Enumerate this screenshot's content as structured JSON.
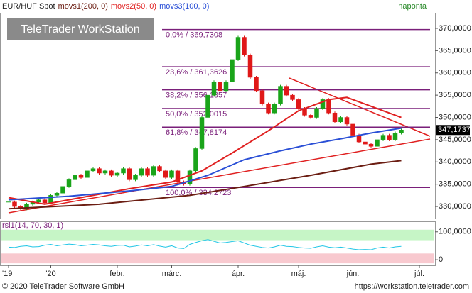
{
  "chart_data": {
    "type": "candlestick",
    "title": "EUR/HUF Spot",
    "logo": "TeleTrader WorkStation",
    "period": "naponta",
    "footer_left": "© 2020 TeleTrader Software GmbH",
    "footer_right": "https://workstation.teletrader.com",
    "close": [
      331,
      330,
      329.5,
      330.5,
      331,
      331.5,
      330.8,
      332.5,
      333,
      334.5,
      336,
      337,
      336.5,
      338,
      338.5,
      337.5,
      338,
      337,
      337.5,
      338.5,
      336,
      337,
      338.5,
      337,
      339,
      338,
      336.5,
      338,
      335.5,
      335,
      338,
      343,
      350,
      355,
      358,
      356,
      358,
      363,
      368,
      364,
      359,
      356,
      353,
      351,
      353,
      357,
      355,
      354,
      352,
      350.5,
      350,
      352,
      354,
      351,
      349,
      350,
      348.5,
      346,
      344.5,
      344,
      343.5,
      345,
      346,
      345,
      346.5,
      347.1737
    ],
    "up_color": "#1aa41a",
    "down_color": "#e01818",
    "last_label": {
      "value": 347.1737,
      "label": "347,1737"
    },
    "series": [
      {
        "name": "movs1(200, 0)",
        "color": "#6b1d12",
        "x": [
          0,
          15,
          30,
          39,
          50,
          60,
          65
        ],
        "values": [
          329.5,
          330.5,
          332.5,
          334.5,
          337,
          339.5,
          340.3
        ]
      },
      {
        "name": "movs2(50, 0)",
        "color": "#e02020",
        "x": [
          0,
          6,
          12,
          20,
          27,
          32,
          37,
          43,
          48,
          53,
          56,
          60,
          65
        ],
        "values": [
          332,
          330.5,
          332,
          334,
          335.5,
          338,
          342,
          347,
          351.5,
          354,
          354.5,
          352.5,
          350
        ]
      },
      {
        "name": "movs3(100, 0)",
        "color": "#2a4fd6",
        "x": [
          0,
          10,
          20,
          27,
          33,
          39,
          45,
          50,
          55,
          60,
          65
        ],
        "values": [
          331.5,
          332.3,
          333.5,
          334.5,
          337,
          340.5,
          342.5,
          344,
          345.2,
          346.5,
          347.6
        ]
      }
    ],
    "fib_color": "#7a1f7a",
    "fib": [
      {
        "value": 369.7308,
        "label": "0,0% / 369,7308"
      },
      {
        "value": 361.3626,
        "label": "23,6% / 361,3626"
      },
      {
        "value": 356.1857,
        "label": "38,2% / 356,1857"
      },
      {
        "value": 352.0015,
        "label": "50,0% / 352,0015"
      },
      {
        "value": 347.8174,
        "label": "61,8% / 347,8174"
      },
      {
        "value": 334.2723,
        "label": "100,0% / 334,2723"
      }
    ],
    "ylim": [
      327.3,
      373.5
    ],
    "yticks": [
      {
        "value": 330,
        "label": "330,0000"
      },
      {
        "value": 335,
        "label": "335,0000"
      },
      {
        "value": 340,
        "label": "340,0000"
      },
      {
        "value": 345,
        "label": "345,0000"
      },
      {
        "value": 350,
        "label": "350,0000"
      },
      {
        "value": 355,
        "label": "355,0000"
      },
      {
        "value": 360,
        "label": "360,0000"
      },
      {
        "value": 365,
        "label": "365,0000"
      },
      {
        "value": 370,
        "label": "370,0000"
      }
    ],
    "xticks": [
      {
        "value": 0,
        "label": "'19"
      },
      {
        "value": 7,
        "label": "'20"
      },
      {
        "value": 18,
        "label": "febr."
      },
      {
        "value": 27,
        "label": "márc."
      },
      {
        "value": 38,
        "label": "ápr."
      },
      {
        "value": 48,
        "label": "máj."
      },
      {
        "value": 57,
        "label": "jún."
      },
      {
        "value": 68,
        "label": "júl."
      }
    ],
    "rsi": {
      "name": "rsi1(14, 70, 30, 1)",
      "color": "#22c6e6",
      "overbought": 70,
      "oversold": 30,
      "ylim": [
        -20,
        135
      ],
      "yticks": [
        {
          "value": 0,
          "label": "0"
        },
        {
          "value": 100,
          "label": "100,0000"
        }
      ],
      "values": [
        45,
        44,
        48,
        50,
        46,
        47,
        52,
        55,
        50,
        53,
        56,
        54,
        50,
        52,
        55,
        53,
        50,
        48,
        51,
        52,
        46,
        49,
        53,
        50,
        54,
        49,
        45,
        50,
        42,
        40,
        55,
        62,
        68,
        72,
        66,
        60,
        62,
        65,
        68,
        60,
        52,
        48,
        44,
        42,
        46,
        52,
        48,
        47,
        44,
        42,
        41,
        46,
        50,
        45,
        43,
        45,
        42,
        38,
        36,
        37,
        36,
        42,
        45,
        42,
        46,
        48
      ]
    }
  }
}
